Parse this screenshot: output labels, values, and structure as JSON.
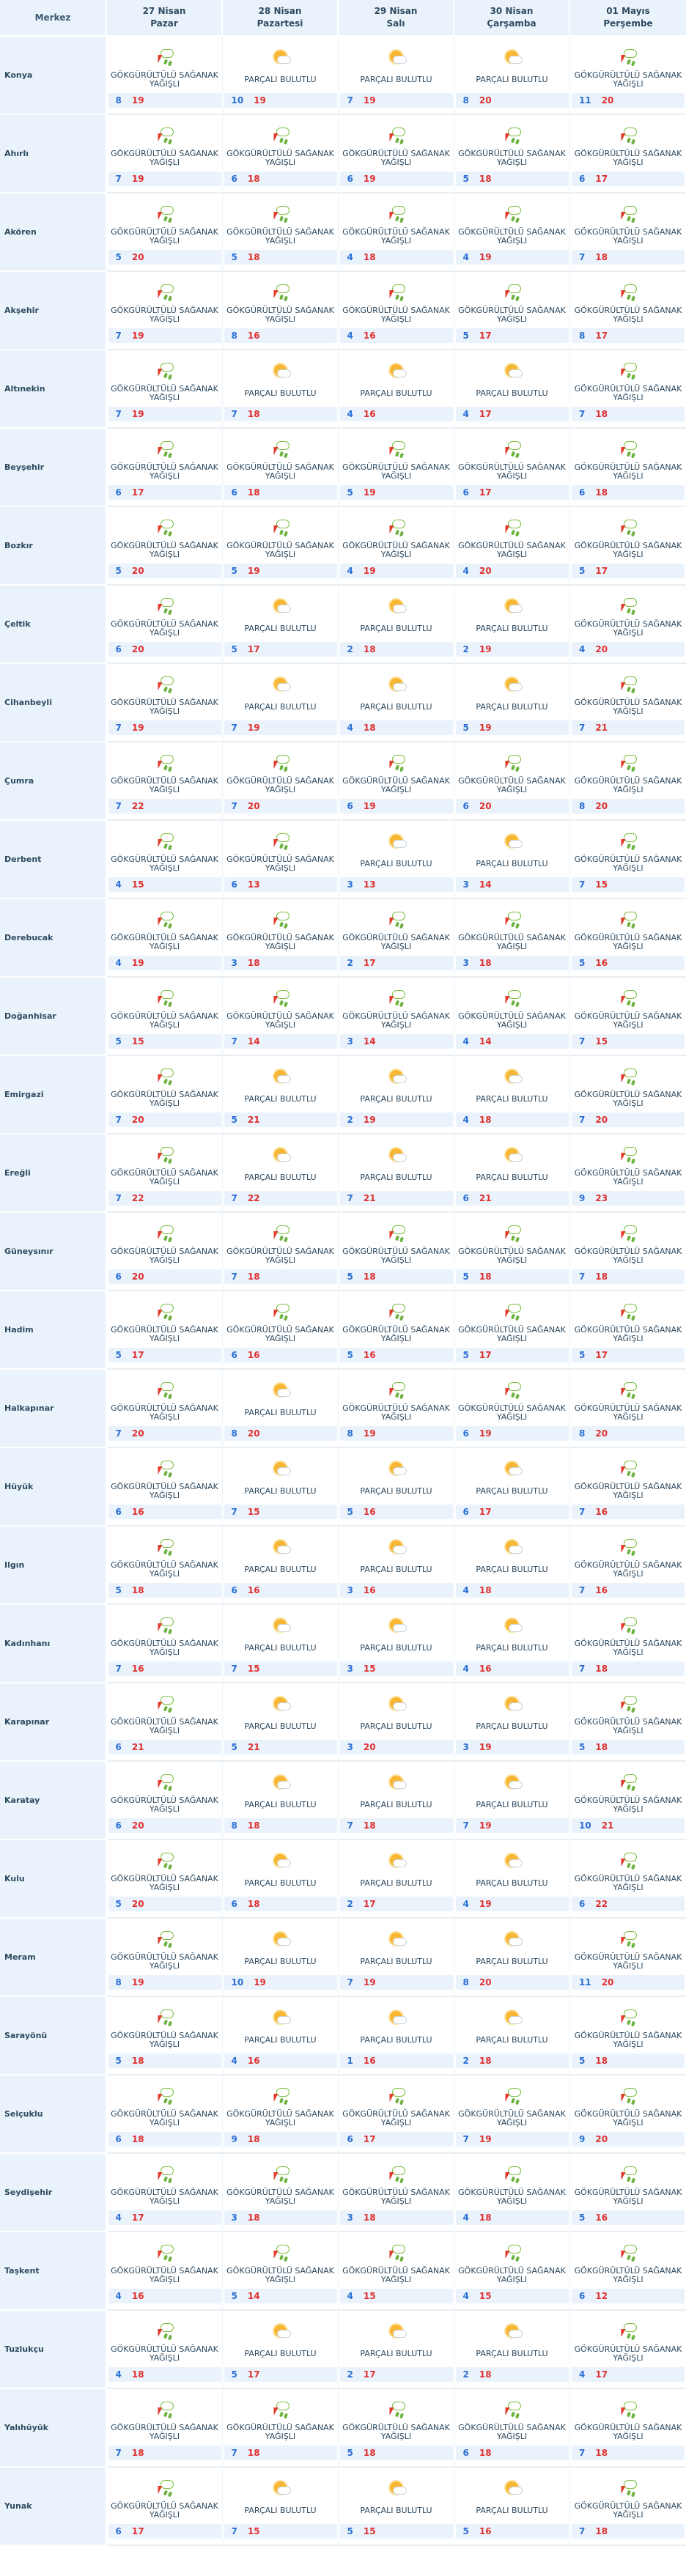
{
  "header": {
    "city_label": "Merkez",
    "days": [
      {
        "date": "27 Nisan",
        "weekday": "Pazar"
      },
      {
        "date": "28 Nisan",
        "weekday": "Pazartesi"
      },
      {
        "date": "29 Nisan",
        "weekday": "Salı"
      },
      {
        "date": "30 Nisan",
        "weekday": "Çarşamba"
      },
      {
        "date": "01 Mayıs",
        "weekday": "Perşembe"
      }
    ]
  },
  "conditions": {
    "S": {
      "text": "GÖKGÜRÜLTÜLÜ SAĞANAK YAĞIŞLI",
      "icon": "thunderstorm-icon"
    },
    "P": {
      "text": "PARÇALI BULUTLU",
      "icon": "partly-cloudy-icon"
    }
  },
  "colors": {
    "min_temp": "#2a6fd6",
    "max_temp": "#e03030",
    "header_bg": "#eaf3fb"
  },
  "rows": [
    {
      "city": "Konya",
      "days": [
        [
          "S",
          8,
          19
        ],
        [
          "P",
          10,
          19
        ],
        [
          "P",
          7,
          19
        ],
        [
          "P",
          8,
          20
        ],
        [
          "S",
          11,
          20
        ]
      ]
    },
    {
      "city": "Ahırlı",
      "days": [
        [
          "S",
          7,
          19
        ],
        [
          "S",
          6,
          18
        ],
        [
          "S",
          6,
          19
        ],
        [
          "S",
          5,
          18
        ],
        [
          "S",
          6,
          17
        ]
      ]
    },
    {
      "city": "Akören",
      "days": [
        [
          "S",
          5,
          20
        ],
        [
          "S",
          5,
          18
        ],
        [
          "S",
          4,
          18
        ],
        [
          "S",
          4,
          19
        ],
        [
          "S",
          7,
          18
        ]
      ]
    },
    {
      "city": "Akşehir",
      "days": [
        [
          "S",
          7,
          19
        ],
        [
          "S",
          8,
          16
        ],
        [
          "S",
          4,
          16
        ],
        [
          "S",
          5,
          17
        ],
        [
          "S",
          8,
          17
        ]
      ]
    },
    {
      "city": "Altınekin",
      "days": [
        [
          "S",
          7,
          19
        ],
        [
          "P",
          7,
          18
        ],
        [
          "P",
          4,
          16
        ],
        [
          "P",
          4,
          17
        ],
        [
          "S",
          7,
          18
        ]
      ]
    },
    {
      "city": "Beyşehir",
      "days": [
        [
          "S",
          6,
          17
        ],
        [
          "S",
          6,
          18
        ],
        [
          "S",
          5,
          19
        ],
        [
          "S",
          6,
          17
        ],
        [
          "S",
          6,
          18
        ]
      ]
    },
    {
      "city": "Bozkır",
      "days": [
        [
          "S",
          5,
          20
        ],
        [
          "S",
          5,
          19
        ],
        [
          "S",
          4,
          19
        ],
        [
          "S",
          4,
          20
        ],
        [
          "S",
          5,
          17
        ]
      ]
    },
    {
      "city": "Çeltik",
      "days": [
        [
          "S",
          6,
          20
        ],
        [
          "P",
          5,
          17
        ],
        [
          "P",
          2,
          18
        ],
        [
          "P",
          2,
          19
        ],
        [
          "S",
          4,
          20
        ]
      ]
    },
    {
      "city": "Cihanbeyli",
      "days": [
        [
          "S",
          7,
          19
        ],
        [
          "P",
          7,
          19
        ],
        [
          "P",
          4,
          18
        ],
        [
          "P",
          5,
          19
        ],
        [
          "S",
          7,
          21
        ]
      ]
    },
    {
      "city": "Çumra",
      "days": [
        [
          "S",
          7,
          22
        ],
        [
          "S",
          7,
          20
        ],
        [
          "S",
          6,
          19
        ],
        [
          "S",
          6,
          20
        ],
        [
          "S",
          8,
          20
        ]
      ]
    },
    {
      "city": "Derbent",
      "days": [
        [
          "S",
          4,
          15
        ],
        [
          "S",
          6,
          13
        ],
        [
          "P",
          3,
          13
        ],
        [
          "P",
          3,
          14
        ],
        [
          "S",
          7,
          15
        ]
      ]
    },
    {
      "city": "Derebucak",
      "days": [
        [
          "S",
          4,
          19
        ],
        [
          "S",
          3,
          18
        ],
        [
          "S",
          2,
          17
        ],
        [
          "S",
          3,
          18
        ],
        [
          "S",
          5,
          16
        ]
      ]
    },
    {
      "city": "Doğanhisar",
      "days": [
        [
          "S",
          5,
          15
        ],
        [
          "S",
          7,
          14
        ],
        [
          "S",
          3,
          14
        ],
        [
          "S",
          4,
          14
        ],
        [
          "S",
          7,
          15
        ]
      ]
    },
    {
      "city": "Emirgazi",
      "days": [
        [
          "S",
          7,
          20
        ],
        [
          "P",
          5,
          21
        ],
        [
          "P",
          2,
          19
        ],
        [
          "P",
          4,
          18
        ],
        [
          "S",
          7,
          20
        ]
      ]
    },
    {
      "city": "Ereğli",
      "days": [
        [
          "S",
          7,
          22
        ],
        [
          "P",
          7,
          22
        ],
        [
          "P",
          7,
          21
        ],
        [
          "P",
          6,
          21
        ],
        [
          "S",
          9,
          23
        ]
      ]
    },
    {
      "city": "Güneysınır",
      "days": [
        [
          "S",
          6,
          20
        ],
        [
          "S",
          7,
          18
        ],
        [
          "S",
          5,
          18
        ],
        [
          "S",
          5,
          18
        ],
        [
          "S",
          7,
          18
        ]
      ]
    },
    {
      "city": "Hadim",
      "days": [
        [
          "S",
          5,
          17
        ],
        [
          "S",
          6,
          16
        ],
        [
          "S",
          5,
          16
        ],
        [
          "S",
          5,
          17
        ],
        [
          "S",
          5,
          17
        ]
      ]
    },
    {
      "city": "Halkapınar",
      "days": [
        [
          "S",
          7,
          20
        ],
        [
          "P",
          8,
          20
        ],
        [
          "S",
          8,
          19
        ],
        [
          "S",
          6,
          19
        ],
        [
          "S",
          8,
          20
        ]
      ]
    },
    {
      "city": "Hüyük",
      "days": [
        [
          "S",
          6,
          16
        ],
        [
          "P",
          7,
          15
        ],
        [
          "P",
          5,
          16
        ],
        [
          "P",
          6,
          17
        ],
        [
          "S",
          7,
          16
        ]
      ]
    },
    {
      "city": "Ilgın",
      "days": [
        [
          "S",
          5,
          18
        ],
        [
          "P",
          6,
          16
        ],
        [
          "P",
          3,
          16
        ],
        [
          "P",
          4,
          18
        ],
        [
          "S",
          7,
          16
        ]
      ]
    },
    {
      "city": "Kadınhanı",
      "days": [
        [
          "S",
          7,
          16
        ],
        [
          "P",
          7,
          15
        ],
        [
          "P",
          3,
          15
        ],
        [
          "P",
          4,
          16
        ],
        [
          "S",
          7,
          18
        ]
      ]
    },
    {
      "city": "Karapınar",
      "days": [
        [
          "S",
          6,
          21
        ],
        [
          "P",
          5,
          21
        ],
        [
          "P",
          3,
          20
        ],
        [
          "P",
          3,
          19
        ],
        [
          "S",
          5,
          18
        ]
      ]
    },
    {
      "city": "Karatay",
      "days": [
        [
          "S",
          6,
          20
        ],
        [
          "P",
          8,
          18
        ],
        [
          "P",
          7,
          18
        ],
        [
          "P",
          7,
          19
        ],
        [
          "S",
          10,
          21
        ]
      ]
    },
    {
      "city": "Kulu",
      "days": [
        [
          "S",
          5,
          20
        ],
        [
          "P",
          6,
          18
        ],
        [
          "P",
          2,
          17
        ],
        [
          "P",
          4,
          19
        ],
        [
          "S",
          6,
          22
        ]
      ]
    },
    {
      "city": "Meram",
      "days": [
        [
          "S",
          8,
          19
        ],
        [
          "P",
          10,
          19
        ],
        [
          "P",
          7,
          19
        ],
        [
          "P",
          8,
          20
        ],
        [
          "S",
          11,
          20
        ]
      ]
    },
    {
      "city": "Sarayönü",
      "days": [
        [
          "S",
          5,
          18
        ],
        [
          "P",
          4,
          16
        ],
        [
          "P",
          1,
          16
        ],
        [
          "P",
          2,
          18
        ],
        [
          "S",
          5,
          18
        ]
      ]
    },
    {
      "city": "Selçuklu",
      "days": [
        [
          "S",
          6,
          18
        ],
        [
          "S",
          9,
          18
        ],
        [
          "S",
          6,
          17
        ],
        [
          "S",
          7,
          19
        ],
        [
          "S",
          9,
          20
        ]
      ]
    },
    {
      "city": "Seydişehir",
      "days": [
        [
          "S",
          4,
          17
        ],
        [
          "S",
          3,
          18
        ],
        [
          "S",
          3,
          18
        ],
        [
          "S",
          4,
          18
        ],
        [
          "S",
          5,
          16
        ]
      ]
    },
    {
      "city": "Taşkent",
      "days": [
        [
          "S",
          4,
          16
        ],
        [
          "S",
          5,
          14
        ],
        [
          "S",
          4,
          15
        ],
        [
          "S",
          4,
          15
        ],
        [
          "S",
          6,
          12
        ]
      ]
    },
    {
      "city": "Tuzlukçu",
      "days": [
        [
          "S",
          4,
          18
        ],
        [
          "P",
          5,
          17
        ],
        [
          "P",
          2,
          17
        ],
        [
          "P",
          2,
          18
        ],
        [
          "S",
          4,
          17
        ]
      ]
    },
    {
      "city": "Yalıhüyük",
      "days": [
        [
          "S",
          7,
          18
        ],
        [
          "S",
          7,
          18
        ],
        [
          "S",
          5,
          18
        ],
        [
          "S",
          6,
          18
        ],
        [
          "S",
          7,
          18
        ]
      ]
    },
    {
      "city": "Yunak",
      "days": [
        [
          "S",
          6,
          17
        ],
        [
          "P",
          7,
          15
        ],
        [
          "P",
          5,
          15
        ],
        [
          "P",
          5,
          16
        ],
        [
          "S",
          7,
          18
        ]
      ]
    }
  ]
}
